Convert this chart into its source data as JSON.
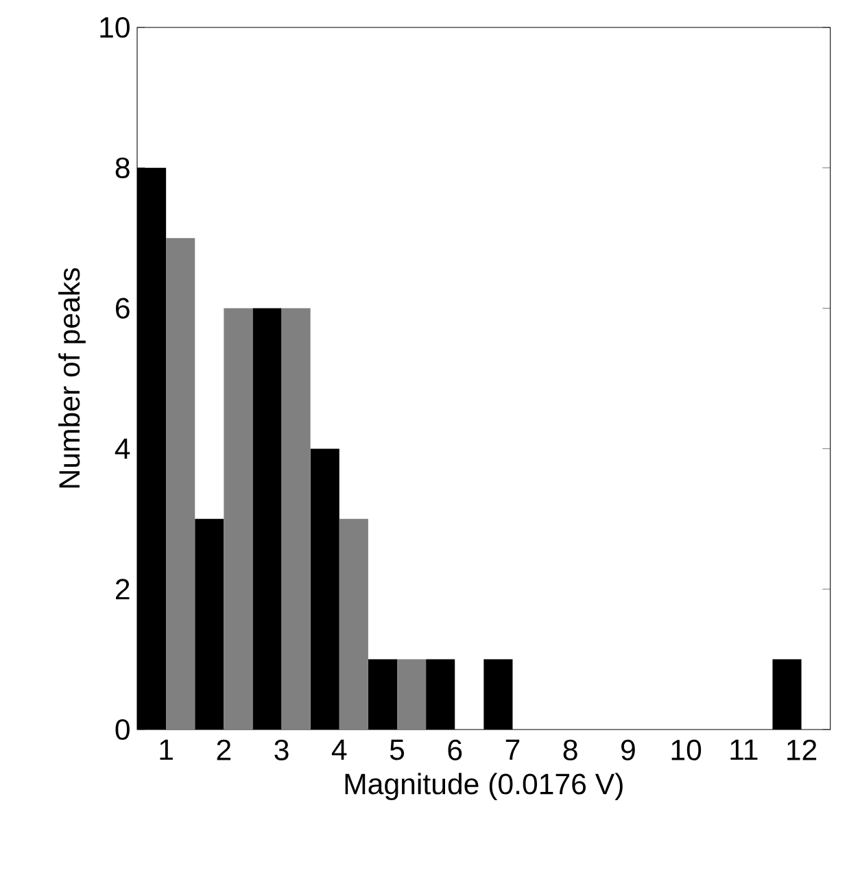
{
  "chart_data": {
    "type": "bar",
    "xlabel": "Magnitude (0.0176 V)",
    "ylabel": "Number of peaks",
    "categories": [
      "1",
      "2",
      "3",
      "4",
      "5",
      "6",
      "7",
      "8",
      "9",
      "10",
      "11",
      "12"
    ],
    "series": [
      {
        "color": "#000000",
        "values": [
          8,
          3,
          6,
          4,
          1,
          1,
          1,
          0,
          0,
          0,
          0,
          1
        ]
      },
      {
        "color": "#808080",
        "values": [
          7,
          6,
          6,
          3,
          1,
          0,
          0,
          0,
          0,
          0,
          0,
          0
        ]
      }
    ],
    "ylim": [
      0,
      10
    ],
    "yticks": [
      0,
      2,
      4,
      6,
      8,
      10
    ]
  }
}
